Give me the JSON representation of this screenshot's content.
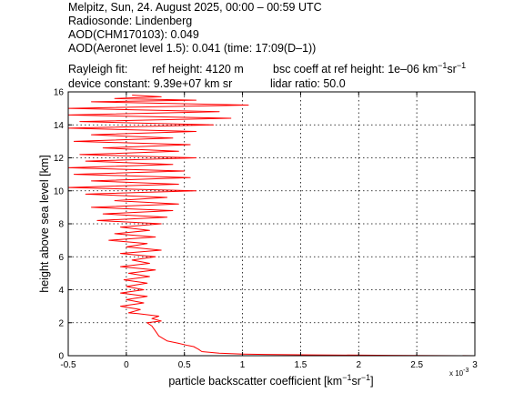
{
  "header": {
    "line1": "Melpitz, Sun, 24. August 2025, 00:00 – 00:59 UTC",
    "line2": "Radiosonde: Lindenberg",
    "line3": "AOD(CHM170103): 0.049",
    "line4": "AOD(Aeronet level 1.5): 0.041   (time: 17:09(D–1))",
    "line5a": "Rayleigh fit:",
    "line5b": "ref height: 4120 m",
    "line5c_pre": "bsc coeff at ref height: 1e–06 km",
    "line5c_mid": "sr",
    "line6a": "device constant: 9.39e+07 km sr",
    "line6b": "lidar ratio: 50.0"
  },
  "axes": {
    "xlabel_pre": "particle backscatter coefficient [km",
    "xlabel_mid": "sr",
    "xlabel_post": "]",
    "exp_neg1": "−1",
    "ylabel": "height above sea level [km]",
    "x_multiplier_base": "x 10",
    "x_multiplier_exp": "-3"
  },
  "chart_data": {
    "type": "line",
    "xlim": [
      -0.5,
      3
    ],
    "ylim": [
      0,
      16
    ],
    "x_unit_scale": "1e-3",
    "x_ticks": [
      "-0.5",
      "0",
      "0.5",
      "1",
      "1.5",
      "2",
      "2.5",
      "3"
    ],
    "y_ticks": [
      "0",
      "2",
      "4",
      "6",
      "8",
      "10",
      "12",
      "14",
      "16"
    ],
    "grid": true,
    "line_color": "#ff0000",
    "series": [
      {
        "points": [
          [
            3.0,
            0.0
          ],
          [
            2.3,
            0.02
          ],
          [
            1.6,
            0.05
          ],
          [
            1.2,
            0.08
          ],
          [
            1.0,
            0.1
          ],
          [
            0.9,
            0.12
          ],
          [
            0.8,
            0.15
          ],
          [
            0.65,
            0.25
          ],
          [
            0.62,
            0.4
          ],
          [
            0.58,
            0.55
          ],
          [
            0.53,
            0.62
          ],
          [
            0.45,
            0.75
          ],
          [
            0.35,
            0.9
          ],
          [
            0.28,
            1.2
          ],
          [
            0.25,
            1.5
          ],
          [
            0.22,
            1.8
          ],
          [
            0.18,
            2.0
          ],
          [
            0.3,
            2.1
          ],
          [
            0.22,
            2.25
          ],
          [
            0.28,
            2.4
          ],
          [
            0.1,
            2.55
          ],
          [
            0.02,
            2.6
          ],
          [
            0.12,
            2.8
          ],
          [
            -0.05,
            3.0
          ],
          [
            0.15,
            3.2
          ],
          [
            0.0,
            3.4
          ],
          [
            0.18,
            3.6
          ],
          [
            -0.05,
            3.8
          ],
          [
            0.15,
            4.0
          ],
          [
            0.0,
            4.2
          ],
          [
            0.18,
            4.4
          ],
          [
            -0.02,
            4.6
          ],
          [
            0.2,
            4.8
          ],
          [
            0.02,
            5.0
          ],
          [
            0.25,
            5.2
          ],
          [
            -0.05,
            5.4
          ],
          [
            0.2,
            5.6
          ],
          [
            0.05,
            5.8
          ],
          [
            0.25,
            6.0
          ],
          [
            -0.05,
            6.2
          ],
          [
            0.3,
            6.4
          ],
          [
            0.0,
            6.6
          ],
          [
            0.18,
            6.8
          ],
          [
            -0.15,
            7.0
          ],
          [
            0.25,
            7.2
          ],
          [
            -0.1,
            7.4
          ],
          [
            0.2,
            7.6
          ],
          [
            -0.05,
            7.8
          ],
          [
            0.3,
            8.0
          ],
          [
            -0.25,
            8.2
          ],
          [
            0.35,
            8.4
          ],
          [
            -0.2,
            8.6
          ],
          [
            0.4,
            8.8
          ],
          [
            -0.3,
            9.0
          ],
          [
            0.45,
            9.2
          ],
          [
            -0.1,
            9.4
          ],
          [
            0.35,
            9.6
          ],
          [
            -0.35,
            9.8
          ],
          [
            0.6,
            10.0
          ],
          [
            -0.5,
            10.2
          ],
          [
            0.45,
            10.4
          ],
          [
            -0.3,
            10.6
          ],
          [
            0.55,
            10.8
          ],
          [
            -0.45,
            11.0
          ],
          [
            0.5,
            11.2
          ],
          [
            -0.5,
            11.4
          ],
          [
            0.4,
            11.6
          ],
          [
            -0.35,
            11.8
          ],
          [
            0.6,
            12.0
          ],
          [
            -0.4,
            12.2
          ],
          [
            0.45,
            12.4
          ],
          [
            -0.2,
            12.6
          ],
          [
            0.55,
            12.8
          ],
          [
            -0.45,
            13.0
          ],
          [
            0.4,
            13.2
          ],
          [
            -0.3,
            13.4
          ],
          [
            0.6,
            13.6
          ],
          [
            -0.5,
            13.8
          ],
          [
            0.75,
            14.0
          ],
          [
            -0.4,
            14.2
          ],
          [
            0.9,
            14.4
          ],
          [
            -0.5,
            14.6
          ],
          [
            0.8,
            14.8
          ],
          [
            -0.5,
            15.0
          ],
          [
            1.05,
            15.2
          ],
          [
            -0.3,
            15.4
          ],
          [
            0.6,
            15.5
          ],
          [
            -0.1,
            15.6
          ],
          [
            0.3,
            15.7
          ],
          [
            0.05,
            15.8
          ]
        ]
      }
    ]
  }
}
